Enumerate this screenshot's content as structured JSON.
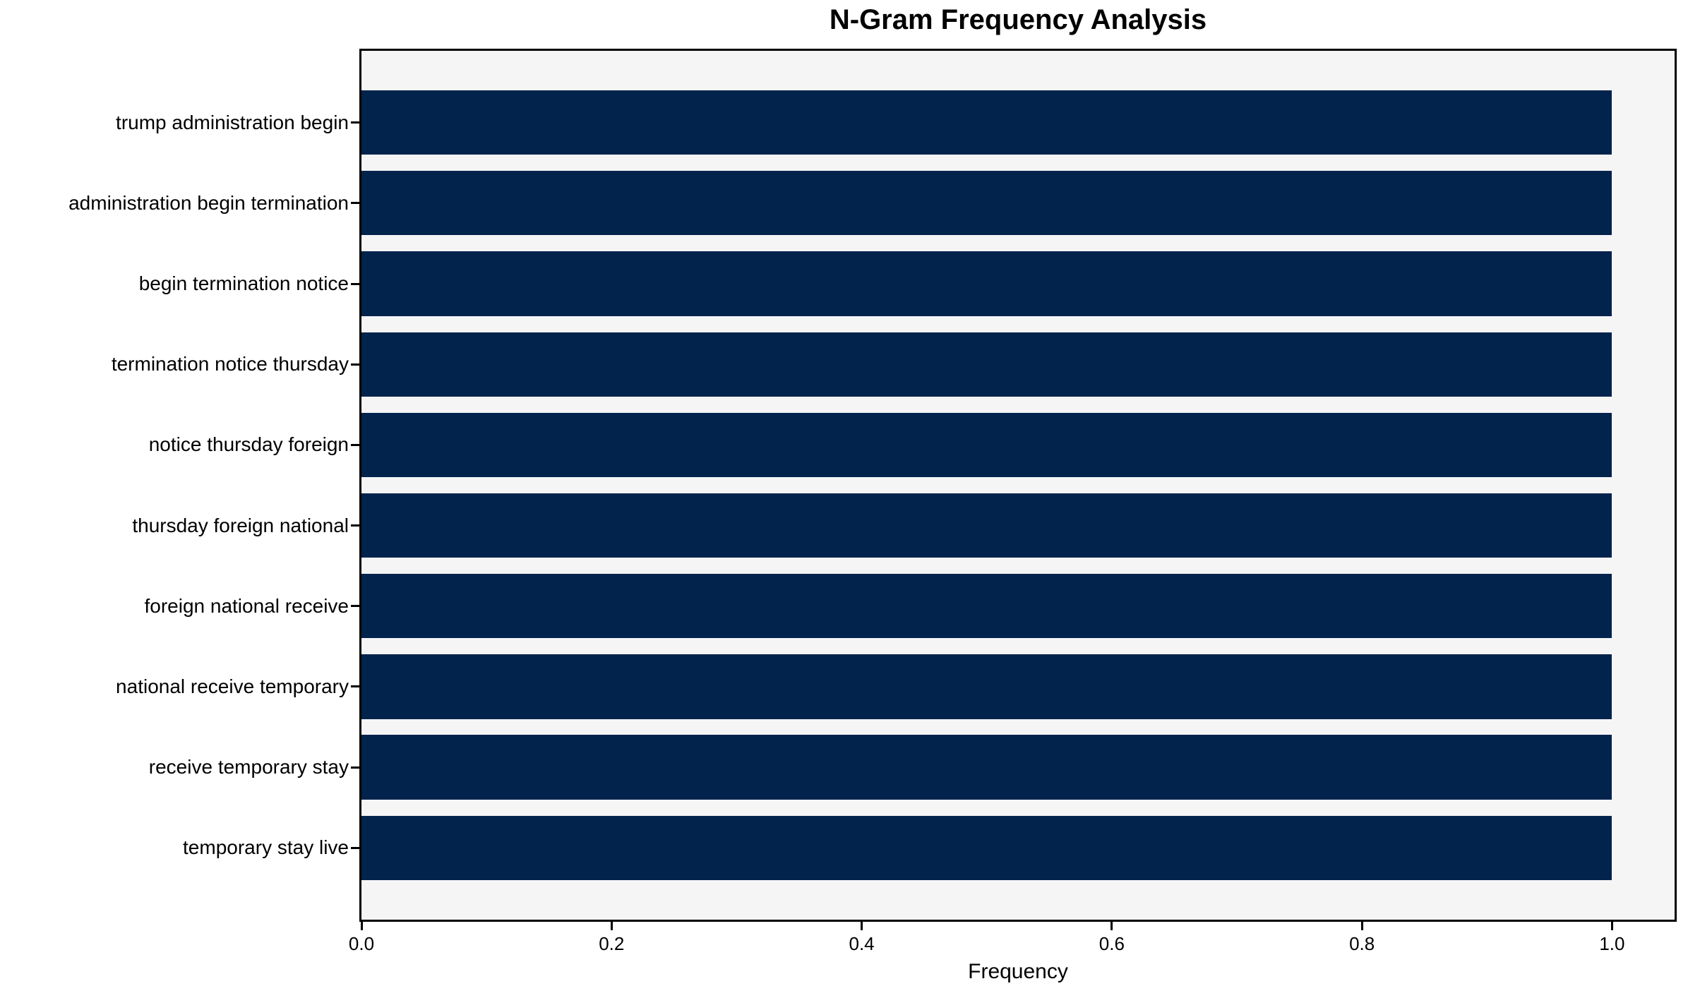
{
  "title": "N-Gram Frequency Analysis",
  "chart_data": {
    "type": "bar",
    "orientation": "horizontal",
    "title": "N-Gram Frequency Analysis",
    "categories": [
      "trump administration begin",
      "administration begin termination",
      "begin termination notice",
      "termination notice thursday",
      "notice thursday foreign",
      "thursday foreign national",
      "foreign national receive",
      "national receive temporary",
      "receive temporary stay",
      "temporary stay live"
    ],
    "values": [
      1.0,
      1.0,
      1.0,
      1.0,
      1.0,
      1.0,
      1.0,
      1.0,
      1.0,
      1.0
    ],
    "xlabel": "Frequency",
    "ylabel": "",
    "xticks": [
      "0.0",
      "0.2",
      "0.4",
      "0.6",
      "0.8",
      "1.0"
    ],
    "xtick_values": [
      0.0,
      0.2,
      0.4,
      0.6,
      0.8,
      1.0
    ],
    "xlim": [
      0,
      1.05
    ],
    "grid": false,
    "legend": null,
    "bar_color": "#02234c",
    "plot_background": "#f5f5f6",
    "figure_background": "#ffffff"
  }
}
